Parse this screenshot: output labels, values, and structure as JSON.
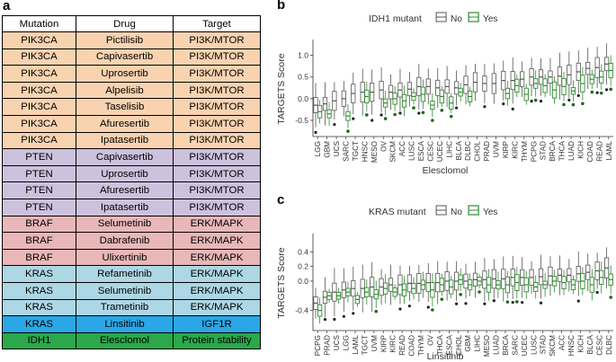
{
  "panels": {
    "a": "a",
    "b": "b",
    "c": "c"
  },
  "table": {
    "headers": [
      "Mutation",
      "Drug",
      "Target"
    ],
    "groups": [
      {
        "id": "pik",
        "color": "#f9d3b0",
        "rows": [
          [
            "PIK3CA",
            "Pictilisib",
            "PI3K/MTOR"
          ],
          [
            "PIK3CA",
            "Capivasertib",
            "PI3K/MTOR"
          ],
          [
            "PIK3CA",
            "Uprosertib",
            "PI3K/MTOR"
          ],
          [
            "PIK3CA",
            "Alpelisib",
            "PI3K/MTOR"
          ],
          [
            "PIK3CA",
            "Taselisib",
            "PI3K/MTOR"
          ],
          [
            "PIK3CA",
            "Afuresertib",
            "PI3K/MTOR"
          ],
          [
            "PIK3CA",
            "Ipatasertib",
            "PI3K/MTOR"
          ]
        ]
      },
      {
        "id": "pten",
        "color": "#cdc2dd",
        "rows": [
          [
            "PTEN",
            "Capivasertib",
            "PI3K/MTOR"
          ],
          [
            "PTEN",
            "Uprosertib",
            "PI3K/MTOR"
          ],
          [
            "PTEN",
            "Afuresertib",
            "PI3K/MTOR"
          ],
          [
            "PTEN",
            "Ipatasertib",
            "PI3K/MTOR"
          ]
        ]
      },
      {
        "id": "braf",
        "color": "#e9b7b8",
        "rows": [
          [
            "BRAF",
            "Selumetinib",
            "ERK/MAPK"
          ],
          [
            "BRAF",
            "Dabrafenib",
            "ERK/MAPK"
          ],
          [
            "BRAF",
            "Ulixertinib",
            "ERK/MAPK"
          ]
        ]
      },
      {
        "id": "kras",
        "color": "#add7e5",
        "rows": [
          [
            "KRAS",
            "Refametinib",
            "ERK/MAPK"
          ],
          [
            "KRAS",
            "Selumetinib",
            "ERK/MAPK"
          ],
          [
            "KRAS",
            "Trametinib",
            "ERK/MAPK"
          ]
        ]
      },
      {
        "id": "kras2",
        "color": "#2aa7e6",
        "rows": [
          [
            "KRAS",
            "Linsitinib",
            "IGF1R"
          ]
        ]
      },
      {
        "id": "idh",
        "color": "#2aa84a",
        "rows": [
          [
            "IDH1",
            "Elesclomol",
            "Protein stability"
          ]
        ]
      }
    ]
  },
  "chart_data": [
    {
      "type": "boxplot",
      "panel": "b",
      "legend_title": "IDH1 mutant",
      "legend": [
        "No",
        "Yes"
      ],
      "series_colors": {
        "No": "#555555",
        "Yes": "#2e8b2e"
      },
      "ylabel": "TARGETS Score",
      "xlabel": "Elesclomol",
      "ylim": [
        -0.75,
        1.2
      ],
      "yticks": [
        -0.5,
        0.0,
        0.5,
        1.0
      ],
      "ytick_labels": [
        "-0.5",
        "0.0",
        "0.5",
        "1.0"
      ],
      "categories": [
        "LGG",
        "GBM",
        "UCS",
        "SARC",
        "TGCT",
        "HNSC",
        "MESO",
        "OV",
        "SKCM",
        "ACC",
        "LUSC",
        "ESCA",
        "CESC",
        "UCEC",
        "LIHC",
        "BLCA",
        "DLBC",
        "CHOL",
        "PRAD",
        "UVM",
        "KIRP",
        "KIRC",
        "THYM",
        "PCPG",
        "STAD",
        "BRCA",
        "THCA",
        "LUAD",
        "KICH",
        "COAD",
        "READ",
        "LAML"
      ],
      "no_median": [
        -0.15,
        -0.12,
        -0.05,
        0.0,
        0.12,
        0.15,
        0.15,
        0.2,
        0.15,
        0.2,
        0.22,
        0.28,
        0.28,
        0.25,
        0.28,
        0.25,
        0.32,
        0.38,
        0.35,
        0.35,
        0.42,
        0.42,
        0.45,
        0.5,
        0.5,
        0.5,
        0.52,
        0.55,
        0.62,
        0.7,
        0.72,
        0.8
      ],
      "yes_median": [
        -0.3,
        -0.35,
        null,
        -0.4,
        null,
        0.05,
        null,
        -0.1,
        0.0,
        -0.05,
        0.05,
        0.1,
        -0.15,
        0.05,
        -0.1,
        0.15,
        0.05,
        null,
        null,
        null,
        0.12,
        0.3,
        0.1,
        0.35,
        0.3,
        0.2,
        0.28,
        0.18,
        0.35,
        0.45,
        0.5,
        0.65
      ]
    },
    {
      "type": "boxplot",
      "panel": "c",
      "legend_title": "KRAS mutant",
      "legend": [
        "No",
        "Yes"
      ],
      "series_colors": {
        "No": "#555555",
        "Yes": "#2e8b2e"
      },
      "ylabel": "TARGETS Score",
      "xlabel": "Linsitinib",
      "ylim": [
        -0.6,
        0.55
      ],
      "yticks": [
        -0.4,
        0.0,
        0.2,
        0.4
      ],
      "ytick_labels": [
        "-0.4",
        "0.0",
        "0.2",
        "0.4"
      ],
      "categories": [
        "PCPG",
        "PRAD",
        "UCS",
        "LGG",
        "LAML",
        "TGCT",
        "UVM",
        "KIRP",
        "KIRC",
        "READ",
        "COAD",
        "THYM",
        "OV",
        "THCA",
        "ESCA",
        "CHOL",
        "GBM",
        "LIHC",
        "MESO",
        "LUAD",
        "BRCA",
        "SARC",
        "UCEC",
        "LUSC",
        "STAD",
        "SKCM",
        "ACC",
        "HNSC",
        "KICH",
        "BLCA",
        "CESC",
        "DLBC"
      ],
      "no_median": [
        -0.3,
        -0.22,
        -0.15,
        -0.12,
        -0.1,
        -0.1,
        -0.08,
        -0.08,
        -0.05,
        -0.05,
        -0.03,
        -0.03,
        -0.02,
        -0.02,
        0.0,
        0.0,
        0.0,
        0.02,
        0.02,
        0.03,
        0.03,
        0.05,
        0.05,
        0.05,
        0.06,
        0.07,
        0.08,
        0.08,
        0.1,
        0.12,
        0.14,
        0.18
      ],
      "yes_median": [
        -0.4,
        -0.2,
        -0.2,
        -0.15,
        -0.25,
        -0.15,
        -0.18,
        -0.1,
        -0.15,
        -0.12,
        -0.1,
        -0.05,
        -0.12,
        -0.05,
        -0.08,
        0.02,
        -0.05,
        0.0,
        -0.05,
        -0.05,
        -0.05,
        -0.02,
        -0.05,
        -0.08,
        -0.05,
        0.0,
        -0.02,
        -0.05,
        0.0,
        -0.05,
        0.05,
        0.02
      ]
    }
  ]
}
